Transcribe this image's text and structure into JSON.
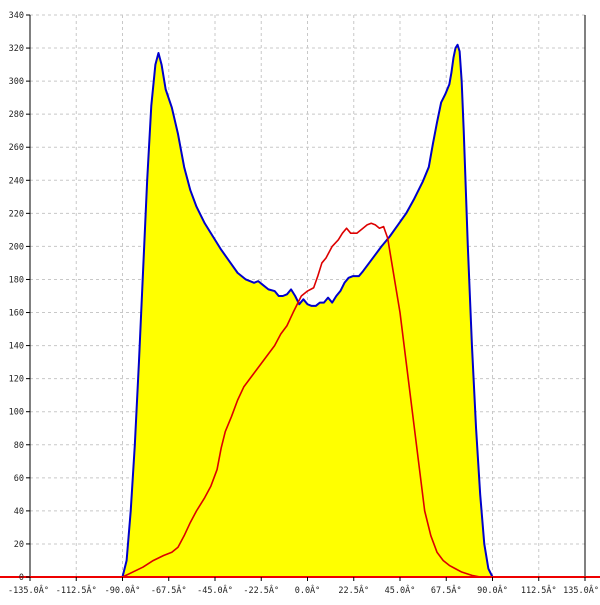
{
  "chart_data": {
    "type": "area",
    "grid": true,
    "xlim": [
      -135,
      135
    ],
    "ylim": [
      0,
      340
    ],
    "x_tick_labels": [
      "-135.0Â°",
      "-112.5Â°",
      "-90.0Â°",
      "-67.5Â°",
      "-45.0Â°",
      "-22.5Â°",
      "0.0Â°",
      "22.5Â°",
      "45.0Â°",
      "67.5Â°",
      "90.0Â°",
      "112.5Â°",
      "135.0Â°"
    ],
    "x_ticks": [
      -135,
      -112.5,
      -90,
      -67.5,
      -45,
      -22.5,
      0,
      22.5,
      45,
      67.5,
      90,
      112.5,
      135
    ],
    "y_tick_labels": [
      "0",
      "20",
      "40",
      "60",
      "80",
      "100",
      "120",
      "140",
      "160",
      "180",
      "200",
      "220",
      "240",
      "260",
      "280",
      "300",
      "320",
      "340"
    ],
    "y_ticks": [
      0,
      20,
      40,
      60,
      80,
      100,
      120,
      140,
      160,
      180,
      200,
      220,
      240,
      260,
      280,
      300,
      320,
      340
    ],
    "colors": {
      "fill": "#ffff00",
      "outline": "#0000cc",
      "series2": "#dd0000",
      "axis": "#ee0000",
      "grid": "#c8c8c8"
    },
    "series": [
      {
        "values": [
          [
            -90,
            0
          ],
          [
            -88,
            10
          ],
          [
            -86,
            40
          ],
          [
            -84,
            80
          ],
          [
            -82,
            130
          ],
          [
            -80,
            185
          ],
          [
            -78,
            240
          ],
          [
            -76,
            285
          ],
          [
            -74,
            310
          ],
          [
            -72.5,
            317
          ],
          [
            -71,
            310
          ],
          [
            -69,
            295
          ],
          [
            -66,
            284
          ],
          [
            -63,
            268
          ],
          [
            -60,
            248
          ],
          [
            -57,
            234
          ],
          [
            -54,
            224
          ],
          [
            -50,
            214
          ],
          [
            -46,
            206
          ],
          [
            -42,
            198
          ],
          [
            -38,
            191
          ],
          [
            -34,
            184
          ],
          [
            -30,
            180
          ],
          [
            -26,
            178
          ],
          [
            -24,
            179
          ],
          [
            -22,
            177
          ],
          [
            -19,
            174
          ],
          [
            -16,
            173
          ],
          [
            -14,
            170
          ],
          [
            -12,
            170
          ],
          [
            -10,
            171
          ],
          [
            -8,
            174
          ],
          [
            -6,
            170
          ],
          [
            -4,
            165
          ],
          [
            -2,
            168
          ],
          [
            0,
            165
          ],
          [
            2,
            164
          ],
          [
            4,
            164
          ],
          [
            6,
            166
          ],
          [
            8,
            166
          ],
          [
            10,
            169
          ],
          [
            12,
            166
          ],
          [
            14,
            170
          ],
          [
            16,
            173
          ],
          [
            18,
            178
          ],
          [
            20,
            181
          ],
          [
            22,
            182
          ],
          [
            25,
            182
          ],
          [
            27,
            185
          ],
          [
            30,
            190
          ],
          [
            33,
            195
          ],
          [
            36,
            200
          ],
          [
            40,
            206
          ],
          [
            44,
            213
          ],
          [
            48,
            220
          ],
          [
            52,
            229
          ],
          [
            56,
            239
          ],
          [
            59,
            248
          ],
          [
            61,
            262
          ],
          [
            63,
            275
          ],
          [
            65,
            287
          ],
          [
            67,
            292
          ],
          [
            69,
            298
          ],
          [
            70,
            305
          ],
          [
            71,
            314
          ],
          [
            72,
            320
          ],
          [
            73,
            322
          ],
          [
            74,
            318
          ],
          [
            75,
            300
          ],
          [
            76,
            270
          ],
          [
            78,
            200
          ],
          [
            80,
            140
          ],
          [
            82,
            90
          ],
          [
            84,
            50
          ],
          [
            86,
            20
          ],
          [
            88,
            5
          ],
          [
            90,
            0
          ]
        ]
      },
      {
        "values": [
          [
            -90,
            0
          ],
          [
            -85,
            3
          ],
          [
            -80,
            6
          ],
          [
            -75,
            10
          ],
          [
            -70,
            13
          ],
          [
            -66,
            15
          ],
          [
            -63,
            18
          ],
          [
            -60,
            25
          ],
          [
            -57,
            33
          ],
          [
            -54,
            40
          ],
          [
            -50,
            48
          ],
          [
            -47,
            55
          ],
          [
            -44,
            65
          ],
          [
            -42,
            78
          ],
          [
            -40,
            88
          ],
          [
            -37,
            97
          ],
          [
            -34,
            107
          ],
          [
            -31,
            115
          ],
          [
            -28,
            120
          ],
          [
            -25,
            125
          ],
          [
            -22,
            130
          ],
          [
            -19,
            135
          ],
          [
            -16,
            140
          ],
          [
            -13,
            147
          ],
          [
            -10,
            152
          ],
          [
            -7,
            160
          ],
          [
            -5,
            165
          ],
          [
            -3,
            170
          ],
          [
            0,
            173
          ],
          [
            3,
            175
          ],
          [
            5,
            182
          ],
          [
            7,
            190
          ],
          [
            9,
            193
          ],
          [
            12,
            200
          ],
          [
            15,
            204
          ],
          [
            17,
            208
          ],
          [
            19,
            211
          ],
          [
            21,
            208
          ],
          [
            24,
            208
          ],
          [
            27,
            211
          ],
          [
            29,
            213
          ],
          [
            31,
            214
          ],
          [
            33,
            213
          ],
          [
            35,
            211
          ],
          [
            37,
            212
          ],
          [
            39,
            205
          ],
          [
            41,
            190
          ],
          [
            43,
            175
          ],
          [
            45,
            160
          ],
          [
            48,
            130
          ],
          [
            51,
            100
          ],
          [
            54,
            70
          ],
          [
            57,
            40
          ],
          [
            60,
            25
          ],
          [
            63,
            15
          ],
          [
            66,
            10
          ],
          [
            69,
            7
          ],
          [
            72,
            5
          ],
          [
            75,
            3
          ],
          [
            80,
            1
          ],
          [
            84,
            0
          ],
          [
            90,
            0
          ]
        ]
      }
    ]
  }
}
